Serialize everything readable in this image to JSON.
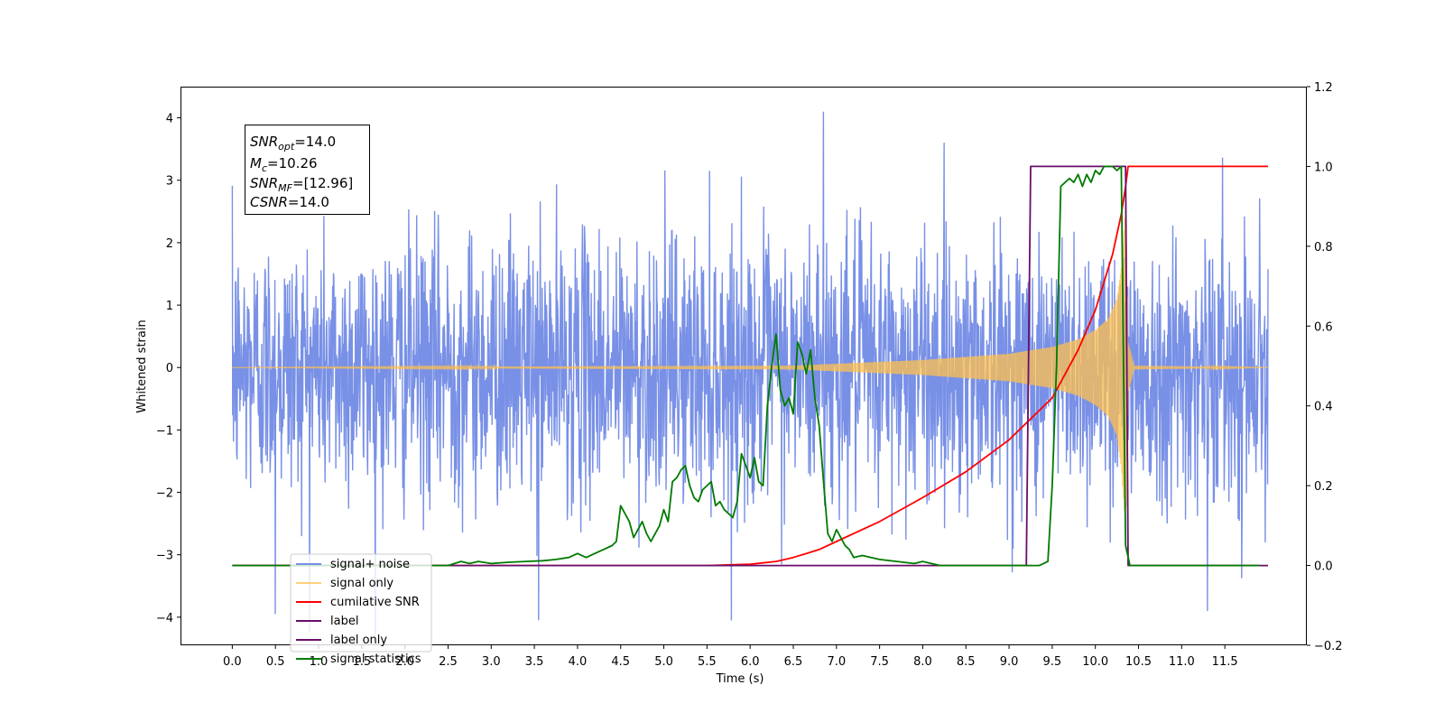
{
  "chart_data": {
    "type": "line",
    "xlabel": "Time (s)",
    "ylabel": "Whitened strain",
    "y2label": "",
    "xlim": [
      -0.6,
      12.45
    ],
    "ylim": [
      -4.45,
      4.5
    ],
    "y2lim": [
      -0.2,
      1.2
    ],
    "x_ticks": [
      0.0,
      0.5,
      1.0,
      1.5,
      2.0,
      2.5,
      3.0,
      3.5,
      4.0,
      4.5,
      5.0,
      5.5,
      6.0,
      6.5,
      7.0,
      7.5,
      8.0,
      8.5,
      9.0,
      9.5,
      10.0,
      10.5,
      11.0,
      11.5
    ],
    "x_tick_labels": [
      "0.0",
      "0.5",
      "1.0",
      "1.5",
      "2.0",
      "2.5",
      "3.0",
      "3.5",
      "4.0",
      "4.5",
      "5.0",
      "5.5",
      "6.0",
      "6.5",
      "7.0",
      "7.5",
      "8.0",
      "8.5",
      "9.0",
      "9.5",
      "10.0",
      "10.5",
      "11.0",
      "11.5"
    ],
    "y_ticks": [
      4,
      3,
      2,
      1,
      0,
      -1,
      -2,
      -3,
      -4
    ],
    "y_tick_labels": [
      "4",
      "3",
      "2",
      "1",
      "0",
      "−1",
      "−2",
      "−3",
      "−4"
    ],
    "y2_ticks": [
      1.2,
      1.0,
      0.8,
      0.6,
      0.4,
      0.2,
      0.0,
      -0.2
    ],
    "y2_tick_labels": [
      "1.2",
      "1.0",
      "0.8",
      "0.6",
      "0.4",
      "0.2",
      "0.0",
      "−0.2"
    ],
    "grid": false,
    "legend_position": "lower-left",
    "annotation": {
      "lines": [
        {
          "base": "SNR",
          "sub": "opt",
          "rest": "=14.0"
        },
        {
          "base": "M",
          "sub": "c",
          "rest": "=10.26"
        },
        {
          "base": "SNR",
          "sub": "MF",
          "rest": "=[12.96]"
        },
        {
          "base": "CSNR",
          "sub": "",
          "rest": "=14.0"
        }
      ]
    },
    "series": [
      {
        "name": "signal+ noise",
        "axis": "left",
        "color": "#7890e6",
        "kind": "noise",
        "t_start": 0.0,
        "t_end": 12.0,
        "sigma": 1.0,
        "notes_peaks": [
          [
            6.85,
            4.1
          ],
          [
            3.55,
            -4.05
          ],
          [
            0.5,
            -3.95
          ],
          [
            11.3,
            -3.9
          ]
        ]
      },
      {
        "name": "signal only",
        "axis": "left",
        "color": "#ffc04d",
        "kind": "chirp",
        "envelope": [
          [
            0.0,
            0.0
          ],
          [
            6.5,
            0.03
          ],
          [
            8.0,
            0.12
          ],
          [
            9.0,
            0.22
          ],
          [
            9.5,
            0.33
          ],
          [
            9.8,
            0.45
          ],
          [
            10.0,
            0.6
          ],
          [
            10.15,
            0.78
          ],
          [
            10.25,
            1.1
          ],
          [
            10.3,
            1.6
          ],
          [
            10.35,
            2.6
          ],
          [
            10.38,
            0.4
          ],
          [
            10.45,
            0.03
          ],
          [
            12.0,
            0.0
          ]
        ]
      },
      {
        "name": "cumilative SNR",
        "axis": "right",
        "color": "#ff0000",
        "x": [
          0.0,
          5.5,
          6.0,
          6.3,
          6.5,
          6.8,
          7.0,
          7.5,
          8.0,
          8.5,
          9.0,
          9.5,
          9.8,
          10.0,
          10.2,
          10.3,
          10.35,
          10.38,
          12.0
        ],
        "y": [
          0.0,
          0.0,
          0.003,
          0.01,
          0.02,
          0.04,
          0.06,
          0.11,
          0.17,
          0.235,
          0.315,
          0.42,
          0.54,
          0.64,
          0.78,
          0.88,
          0.95,
          1.0,
          1.0
        ]
      },
      {
        "name": "label",
        "axis": "right",
        "color": "#6a0d6a",
        "x": [
          0.0,
          9.2,
          9.25,
          10.35,
          10.38,
          12.0
        ],
        "y": [
          0.0,
          0.0,
          1.0,
          1.0,
          0.0,
          0.0
        ]
      },
      {
        "name": "label only",
        "axis": "right",
        "color": "#6a0d6a",
        "hidden": true
      },
      {
        "name": "signal statistics",
        "axis": "right",
        "color": "#007a00",
        "x": [
          0.0,
          2.5,
          2.65,
          2.75,
          2.85,
          3.0,
          3.2,
          3.4,
          3.6,
          3.75,
          3.9,
          4.0,
          4.1,
          4.2,
          4.3,
          4.4,
          4.45,
          4.5,
          4.55,
          4.6,
          4.65,
          4.7,
          4.75,
          4.8,
          4.85,
          4.9,
          4.95,
          5.0,
          5.05,
          5.1,
          5.15,
          5.2,
          5.25,
          5.3,
          5.35,
          5.4,
          5.45,
          5.5,
          5.55,
          5.6,
          5.65,
          5.7,
          5.75,
          5.8,
          5.85,
          5.9,
          5.95,
          6.0,
          6.05,
          6.1,
          6.15,
          6.2,
          6.25,
          6.3,
          6.35,
          6.4,
          6.45,
          6.5,
          6.55,
          6.6,
          6.65,
          6.7,
          6.75,
          6.8,
          6.85,
          6.9,
          6.95,
          7.0,
          7.05,
          7.1,
          7.15,
          7.2,
          7.3,
          7.5,
          7.7,
          7.9,
          8.0,
          8.1,
          8.2,
          8.5,
          9.0,
          9.35,
          9.4,
          9.45,
          9.5,
          9.55,
          9.6,
          9.65,
          9.7,
          9.75,
          9.8,
          9.85,
          9.9,
          9.95,
          10.0,
          10.05,
          10.1,
          10.15,
          10.2,
          10.25,
          10.3,
          10.35,
          10.4,
          11.9
        ],
        "y": [
          0.0,
          0.0,
          0.01,
          0.005,
          0.01,
          0.005,
          0.008,
          0.01,
          0.012,
          0.015,
          0.02,
          0.03,
          0.02,
          0.03,
          0.04,
          0.05,
          0.06,
          0.15,
          0.13,
          0.11,
          0.07,
          0.09,
          0.11,
          0.08,
          0.06,
          0.08,
          0.1,
          0.14,
          0.11,
          0.21,
          0.22,
          0.24,
          0.25,
          0.2,
          0.17,
          0.16,
          0.19,
          0.2,
          0.21,
          0.15,
          0.16,
          0.14,
          0.13,
          0.12,
          0.16,
          0.28,
          0.25,
          0.22,
          0.27,
          0.21,
          0.2,
          0.4,
          0.5,
          0.58,
          0.44,
          0.4,
          0.42,
          0.38,
          0.56,
          0.53,
          0.48,
          0.54,
          0.42,
          0.35,
          0.21,
          0.08,
          0.06,
          0.09,
          0.07,
          0.05,
          0.04,
          0.02,
          0.025,
          0.015,
          0.01,
          0.005,
          0.01,
          0.005,
          0.0,
          0.0,
          0.0,
          0.0,
          0.005,
          0.01,
          0.2,
          0.5,
          0.95,
          0.96,
          0.97,
          0.96,
          0.98,
          0.95,
          0.98,
          0.96,
          0.99,
          0.98,
          1.0,
          1.0,
          1.0,
          0.99,
          1.0,
          0.05,
          0.0,
          0.0
        ]
      }
    ]
  }
}
